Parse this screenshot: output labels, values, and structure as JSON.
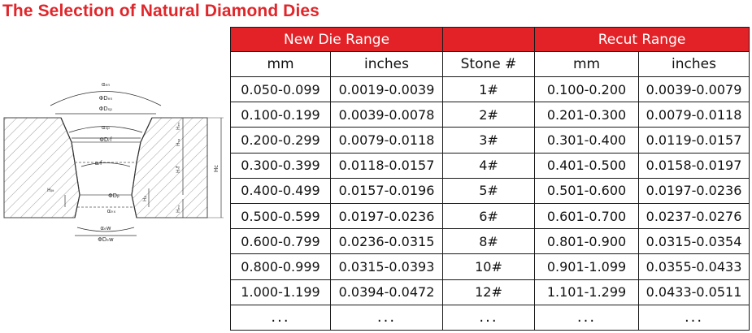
{
  "title": "The Selection of Natural Diamond Dies",
  "colors": {
    "title": "#e0262a",
    "header_bg": "#e32227",
    "header_text": "#ffffff"
  },
  "diagram": {
    "labels": {
      "a_en": "αₑₙ",
      "d_en": "ΦDₑₙ",
      "d_sp": "ΦDₛₚ",
      "a_sp": "αₛₚ",
      "d_rf": "ΦDᵣf",
      "a_rf": "αᵣf",
      "d_b": "ΦDᵦ",
      "a_ex": "αₑₓ",
      "a_ew": "αₑw",
      "d_ew": "ΦDₑw",
      "h_en": "Hₑₙ",
      "h_sp": "Hₛₚ",
      "h_rf": "Hᵣf",
      "h_c": "Hc",
      "h_b": "Hᵦ",
      "h_ex": "Hₑₓ",
      "h_bt": "Hᵦₜ"
    }
  },
  "table": {
    "groups": {
      "new": "New Die Range",
      "recut": "Recut Range"
    },
    "columns": [
      "mm",
      "inches",
      "Stone #",
      "mm",
      "inches"
    ],
    "rows": [
      [
        "0.050-0.099",
        "0.0019-0.0039",
        "1#",
        "0.100-0.200",
        "0.0039-0.0079"
      ],
      [
        "0.100-0.199",
        "0.0039-0.0078",
        "2#",
        "0.201-0.300",
        "0.0079-0.0118"
      ],
      [
        "0.200-0.299",
        "0.0079-0.0118",
        "3#",
        "0.301-0.400",
        "0.0119-0.0157"
      ],
      [
        "0.300-0.399",
        "0.0118-0.0157",
        "4#",
        "0.401-0.500",
        "0.0158-0.0197"
      ],
      [
        "0.400-0.499",
        "0.0157-0.0196",
        "5#",
        "0.501-0.600",
        "0.0197-0.0236"
      ],
      [
        "0.500-0.599",
        "0.0197-0.0236",
        "6#",
        "0.601-0.700",
        "0.0237-0.0276"
      ],
      [
        "0.600-0.799",
        "0.0236-0.0315",
        "8#",
        "0.801-0.900",
        "0.0315-0.0354"
      ],
      [
        "0.800-0.999",
        "0.0315-0.0393",
        "10#",
        "0.901-1.099",
        "0.0355-0.0433"
      ],
      [
        "1.000-1.199",
        "0.0394-0.0472",
        "12#",
        "1.101-1.299",
        "0.0433-0.0511"
      ],
      [
        "...",
        "...",
        "...",
        "...",
        "..."
      ]
    ]
  }
}
